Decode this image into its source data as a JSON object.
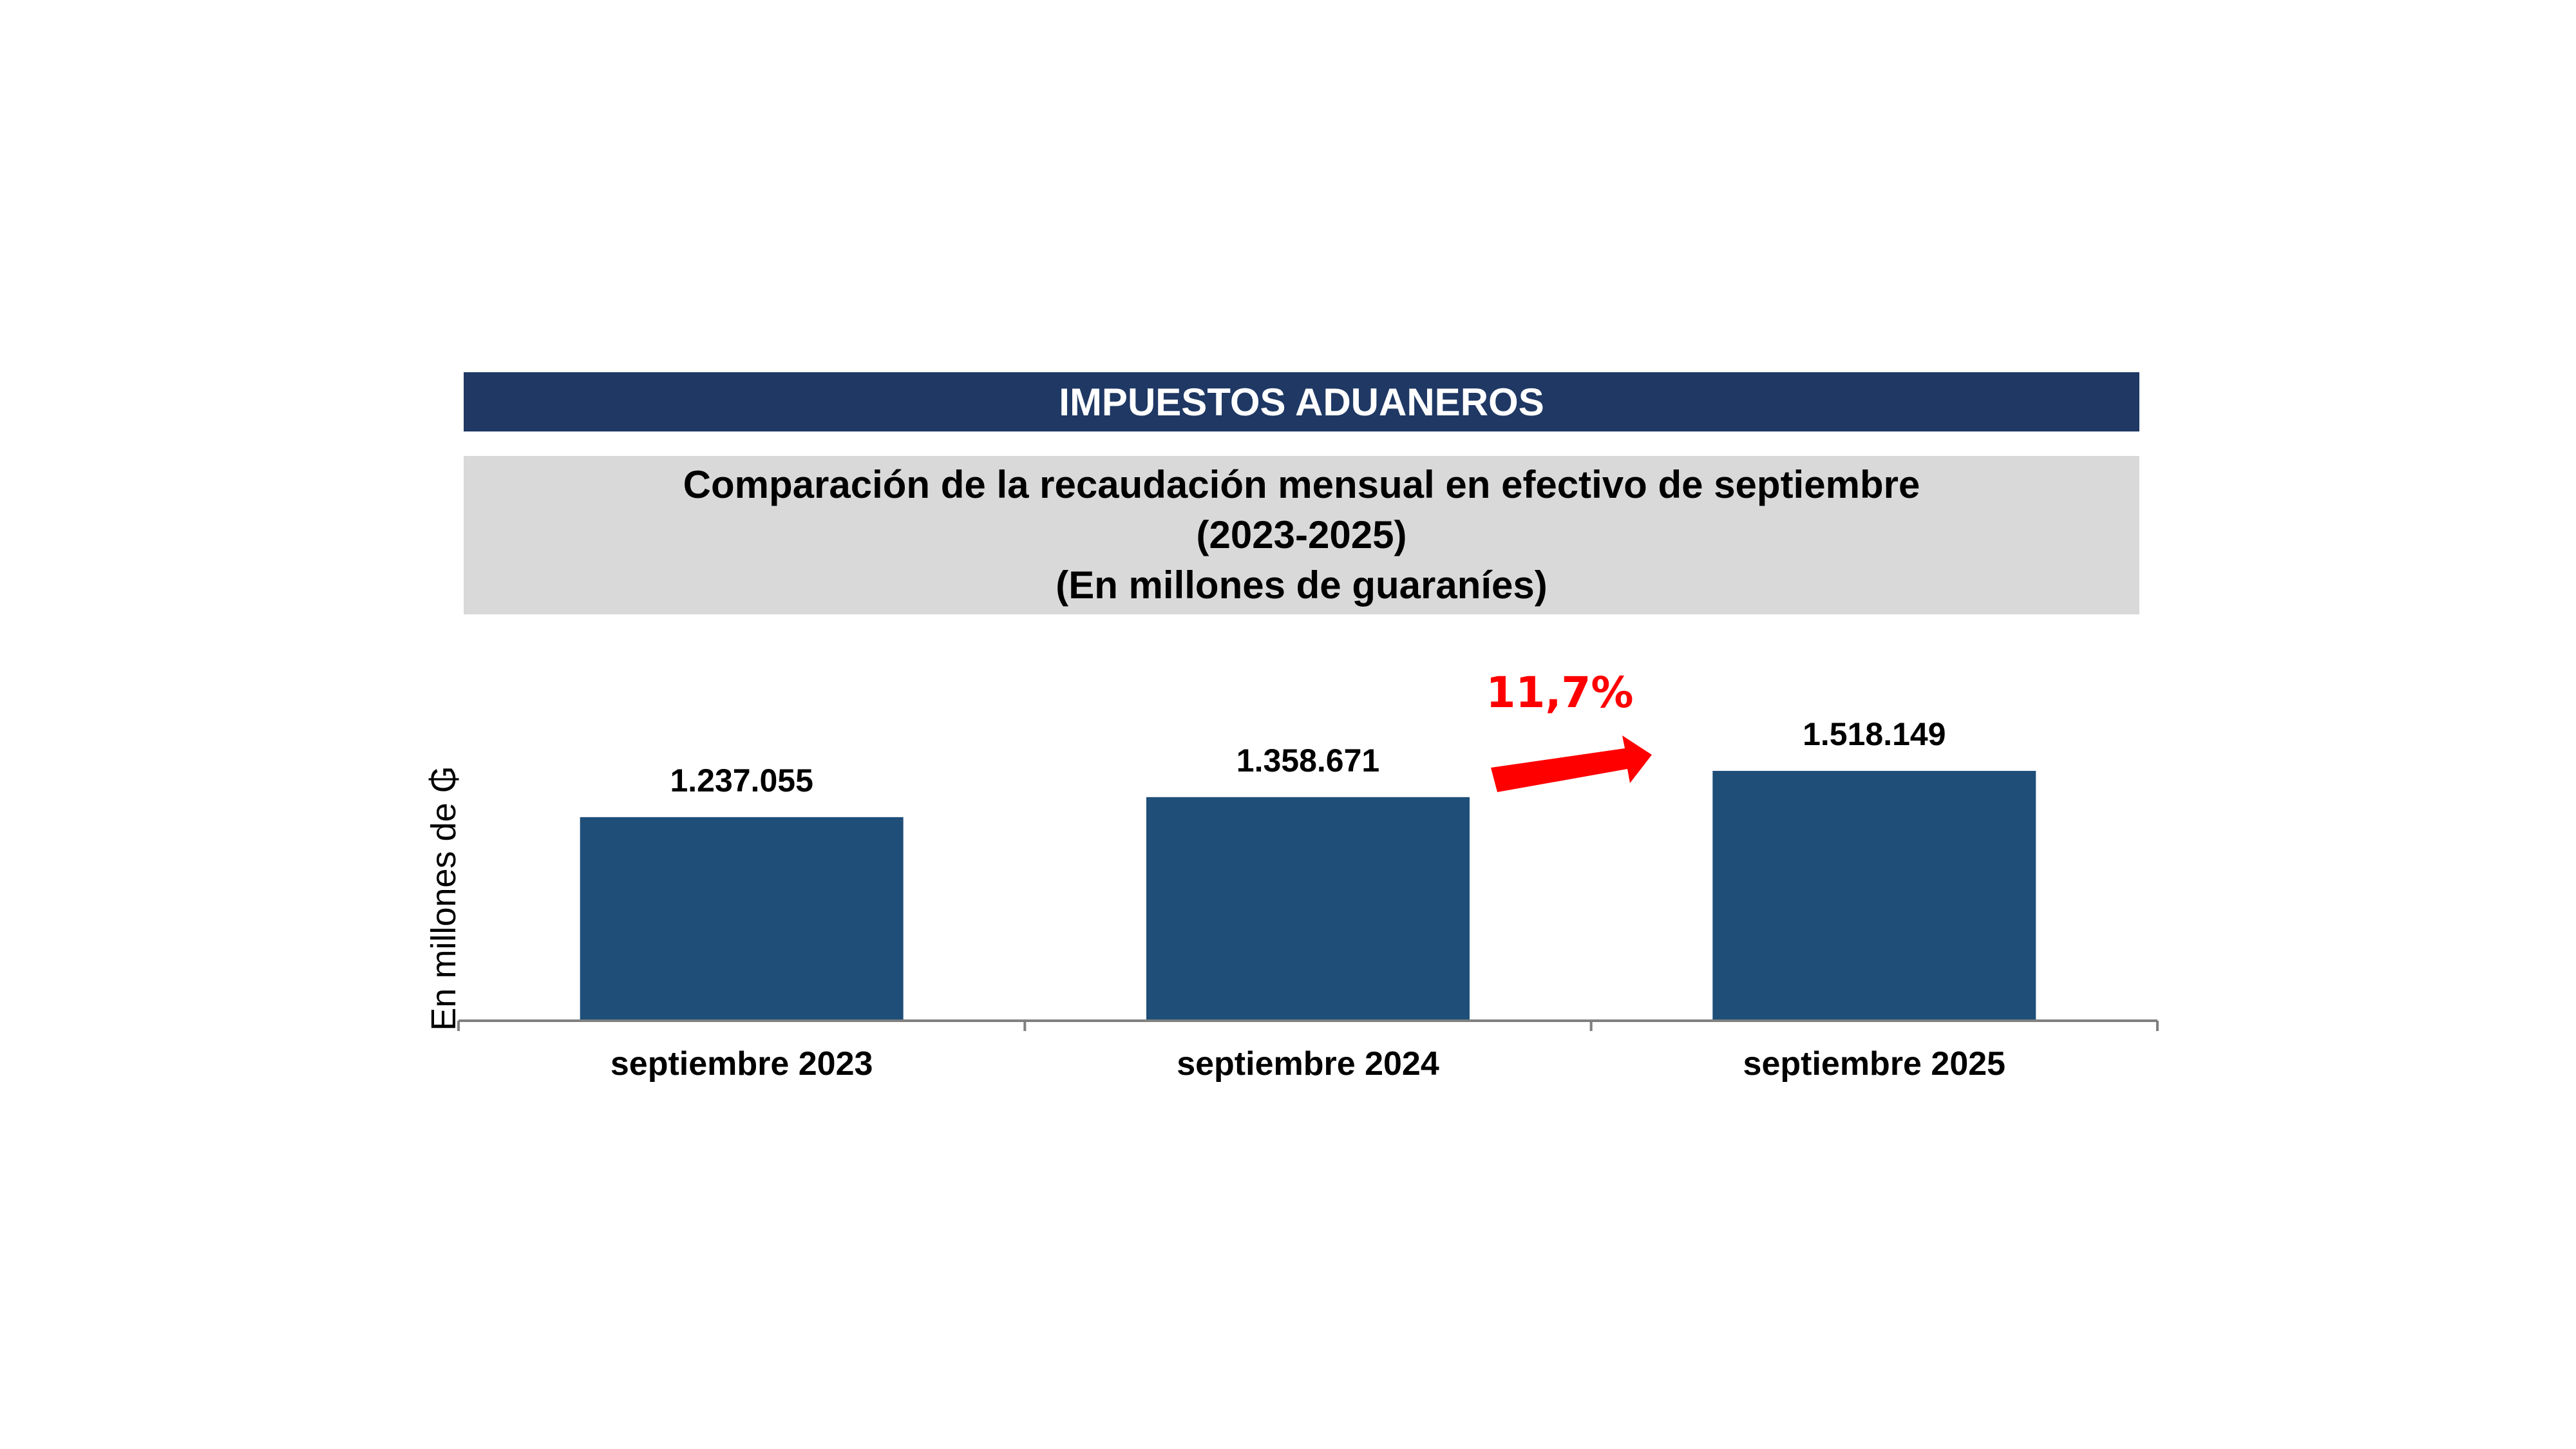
{
  "banner": {
    "title": "IMPUESTOS ADUANEROS"
  },
  "subtitle": {
    "line1": "Comparación de la recaudación mensual en efectivo de septiembre",
    "line2": "(2023-2025)",
    "line3": "(En millones de guaraníes)"
  },
  "chart_data": {
    "type": "bar",
    "title": "Comparación de la recaudación mensual en efectivo de septiembre (2023-2025) (En millones de guaraníes)",
    "categories": [
      "septiembre 2023",
      "septiembre 2024",
      "septiembre 2025"
    ],
    "values": [
      1237055,
      1358671,
      1518149
    ],
    "value_labels": [
      "1.237.055",
      "1.358.671",
      "1.518.149"
    ],
    "ylabel": "En millones de ₲",
    "xlabel": "",
    "ylim": [
      0,
      1518149
    ],
    "bar_color": "#1f4e79",
    "annotation": {
      "text": "11,7%",
      "color": "#ff0000",
      "from_category": 1,
      "to_category": 2
    }
  }
}
